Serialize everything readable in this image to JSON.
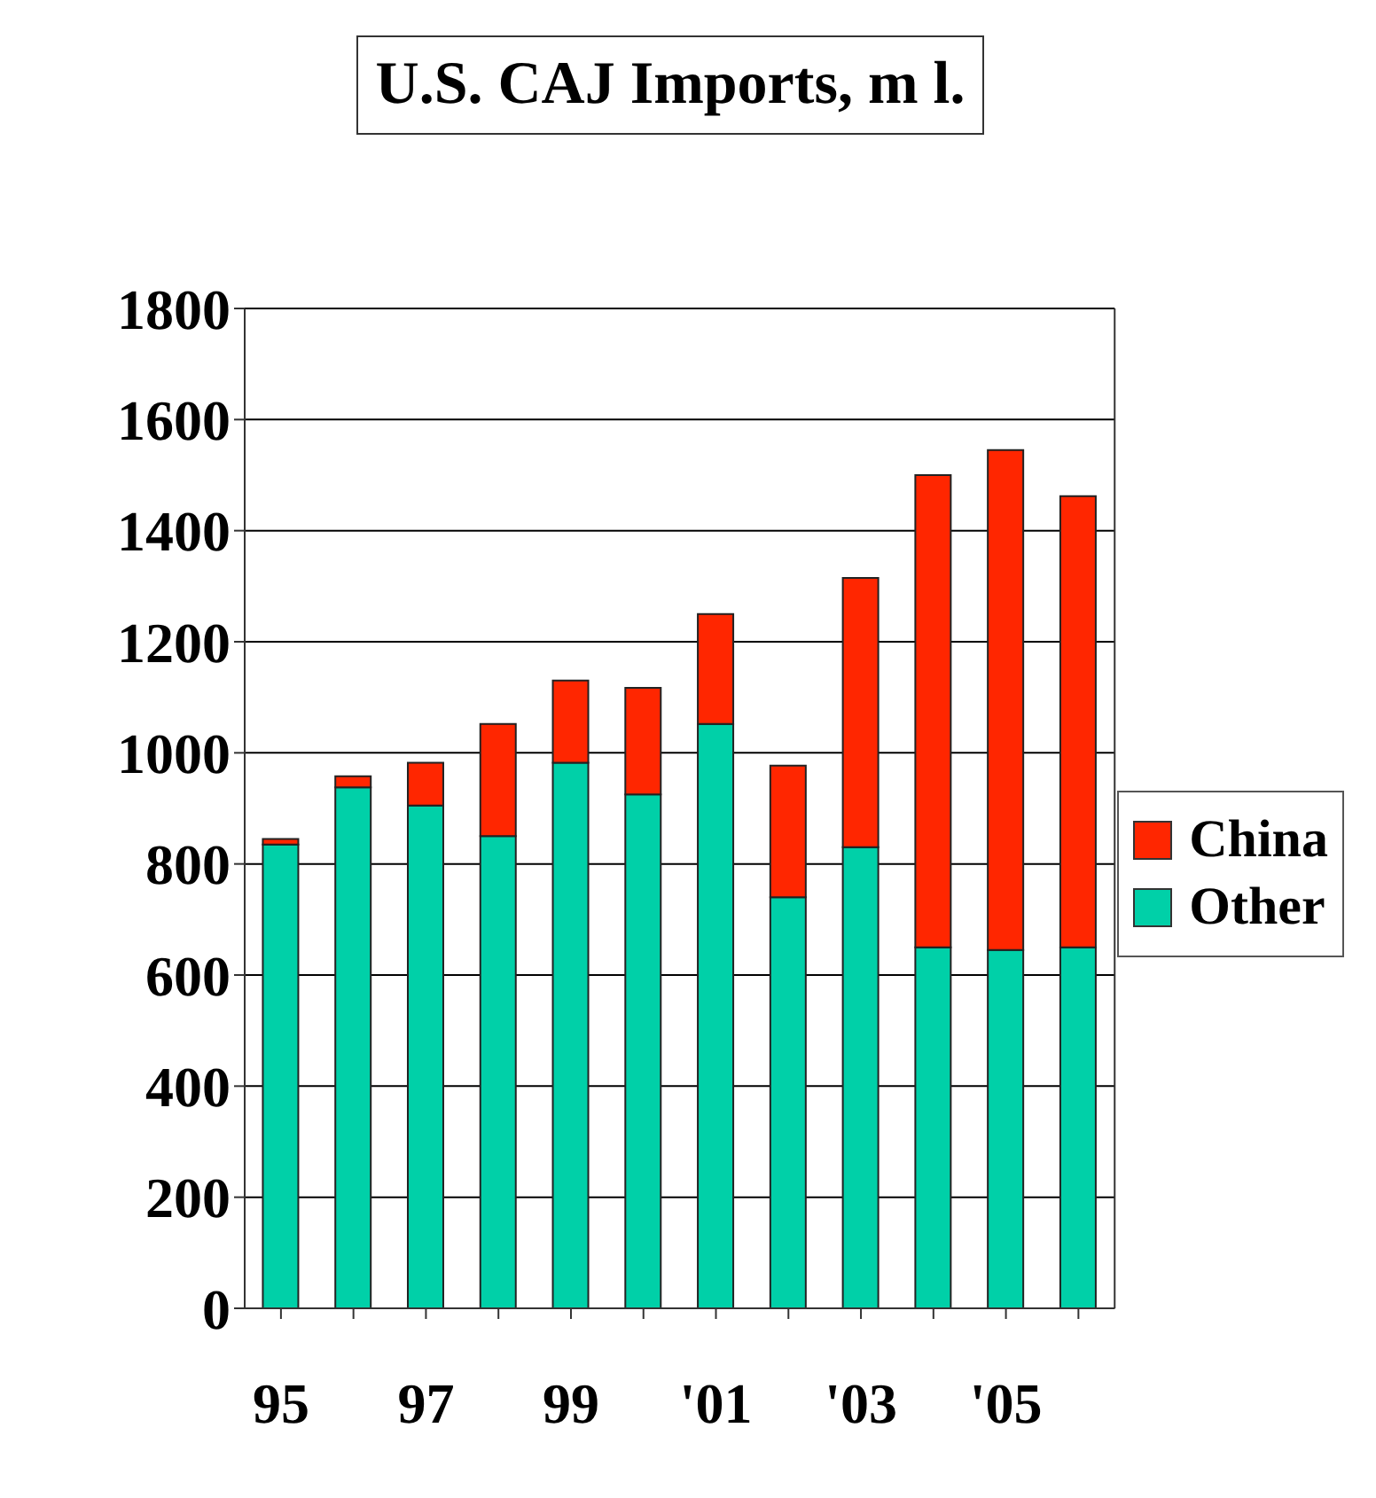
{
  "chart_data": {
    "type": "bar",
    "title": "U.S. CAJ Imports, m l.",
    "stacked": true,
    "categories": [
      "95",
      null,
      "97",
      null,
      "99",
      null,
      "'01",
      null,
      "'03",
      null,
      "'05",
      null
    ],
    "series": [
      {
        "name": "Other",
        "color": "#00d0a8",
        "values": [
          835,
          938,
          905,
          850,
          982,
          925,
          1052,
          740,
          830,
          650,
          645,
          650
        ]
      },
      {
        "name": "China",
        "color": "#ff2600",
        "values": [
          10,
          20,
          77,
          202,
          148,
          192,
          198,
          237,
          485,
          850,
          900,
          812
        ]
      }
    ],
    "ylim": [
      0,
      1800
    ],
    "yticks": [
      0,
      200,
      400,
      600,
      800,
      1000,
      1200,
      1400,
      1600,
      1800
    ],
    "grid": "y",
    "legend": "right"
  }
}
